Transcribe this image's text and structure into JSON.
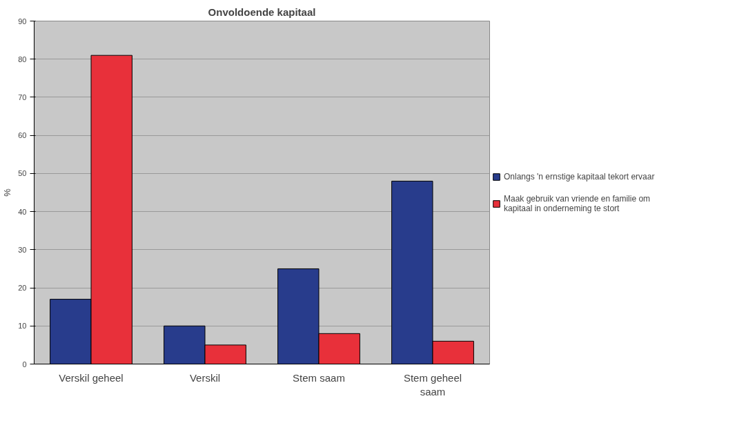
{
  "chart_data": {
    "type": "bar",
    "title": "Onvoldoende kapitaal",
    "ylabel": "%",
    "categories": [
      "Verskil geheel",
      "Verskil",
      "Stem saam",
      "Stem geheel saam"
    ],
    "series": [
      {
        "name": "Onlangs 'n ernstige kapitaal tekort ervaar",
        "color": "#283c8c",
        "values": [
          17,
          10,
          25,
          48
        ]
      },
      {
        "name": "Maak gebruik van vriende en familie om kapitaal in onderneming te stort",
        "color": "#e8303a",
        "values": [
          81,
          5,
          8,
          6
        ]
      }
    ],
    "ylim": [
      0,
      90
    ],
    "yticks": [
      0,
      10,
      20,
      30,
      40,
      50,
      60,
      70,
      80,
      90
    ],
    "grid": "y",
    "legend": "right"
  }
}
